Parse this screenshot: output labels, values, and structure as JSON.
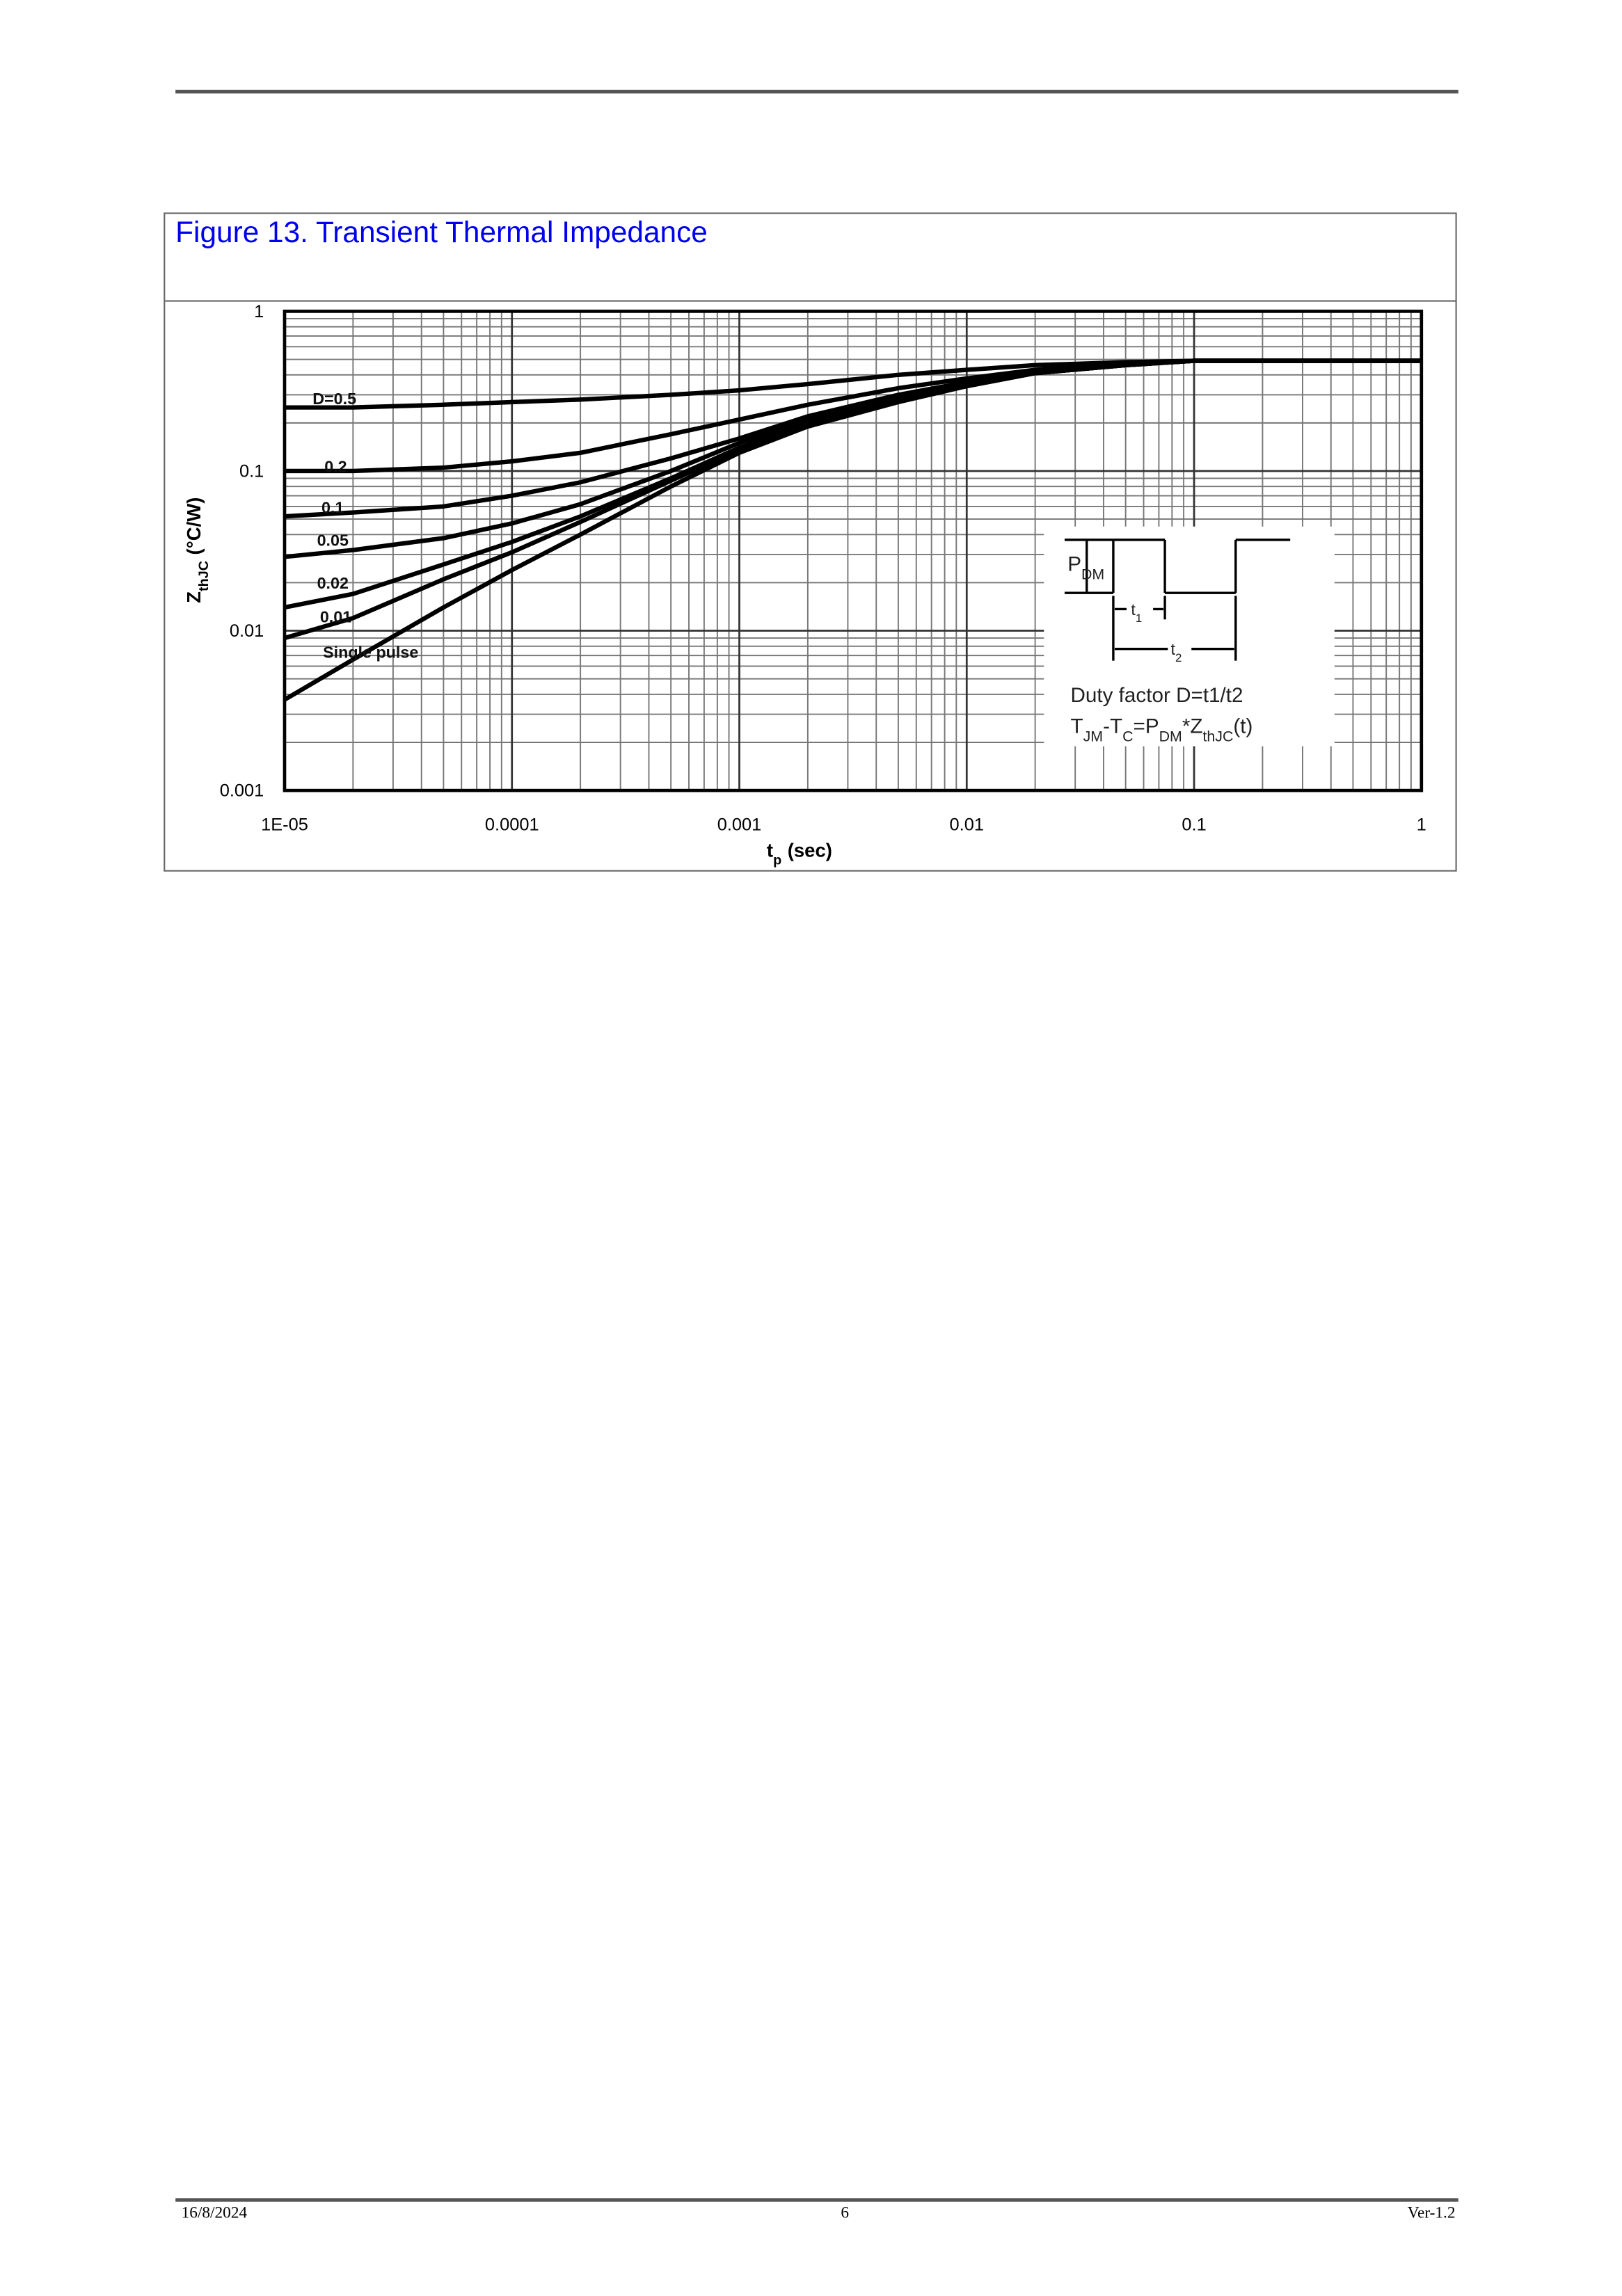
{
  "header": {
    "figure_title": "Figure 13. Transient Thermal Impedance"
  },
  "chart_data": {
    "type": "line",
    "xlabel": [
      "t",
      "p",
      "(sec)"
    ],
    "ylabel": [
      "Z",
      "thJC",
      "(°C/W)"
    ],
    "log_x": true,
    "log_y": true,
    "grid": true,
    "minor_grid": true,
    "xlim": [
      1e-05,
      1
    ],
    "ylim": [
      0.001,
      1
    ],
    "xticks": [
      {
        "value": 1e-05,
        "label": "1E-05"
      },
      0.0001,
      0.001,
      0.01,
      0.1,
      1
    ],
    "yticks": [
      0.001,
      0.01,
      0.1,
      1
    ],
    "x": [
      1e-05,
      2e-05,
      5e-05,
      0.0001,
      0.0002,
      0.0005,
      0.001,
      0.002,
      0.005,
      0.01,
      0.02,
      0.05,
      0.1,
      0.2,
      0.5,
      1
    ],
    "series": [
      {
        "name": "D=0.5",
        "color": "#000000",
        "values": [
          0.25,
          0.25,
          0.26,
          0.27,
          0.28,
          0.3,
          0.32,
          0.35,
          0.4,
          0.43,
          0.46,
          0.48,
          0.49,
          0.49,
          0.49,
          0.49
        ]
      },
      {
        "name": "0.2",
        "color": "#000000",
        "values": [
          0.1,
          0.1,
          0.105,
          0.115,
          0.13,
          0.17,
          0.21,
          0.26,
          0.33,
          0.38,
          0.43,
          0.47,
          0.49,
          0.49,
          0.49,
          0.49
        ]
      },
      {
        "name": "0.1",
        "color": "#000000",
        "values": [
          0.052,
          0.055,
          0.06,
          0.07,
          0.085,
          0.12,
          0.16,
          0.22,
          0.3,
          0.36,
          0.42,
          0.47,
          0.49,
          0.49,
          0.49,
          0.49
        ]
      },
      {
        "name": "0.05",
        "color": "#000000",
        "values": [
          0.029,
          0.032,
          0.038,
          0.047,
          0.062,
          0.1,
          0.15,
          0.21,
          0.29,
          0.35,
          0.41,
          0.46,
          0.49,
          0.49,
          0.49,
          0.49
        ]
      },
      {
        "name": "0.02",
        "color": "#000000",
        "values": [
          0.014,
          0.017,
          0.026,
          0.036,
          0.052,
          0.09,
          0.14,
          0.2,
          0.28,
          0.34,
          0.41,
          0.46,
          0.49,
          0.49,
          0.49,
          0.49
        ]
      },
      {
        "name": "0.01",
        "color": "#000000",
        "values": [
          0.009,
          0.012,
          0.021,
          0.031,
          0.048,
          0.087,
          0.135,
          0.2,
          0.28,
          0.34,
          0.41,
          0.46,
          0.49,
          0.49,
          0.49,
          0.49
        ]
      },
      {
        "name": "Single pulse",
        "color": "#000000",
        "values": [
          0.0037,
          0.0066,
          0.014,
          0.024,
          0.04,
          0.08,
          0.13,
          0.19,
          0.27,
          0.34,
          0.41,
          0.46,
          0.49,
          0.49,
          0.49,
          0.49
        ]
      }
    ]
  },
  "inset": {
    "pdm": [
      "P",
      "DM"
    ],
    "t1": [
      "t",
      "1"
    ],
    "t2": [
      "t",
      "2"
    ],
    "duty": "Duty factor D=t1/t2",
    "formula": [
      "T",
      "JM",
      "-T",
      "C",
      "=P",
      "DM",
      "*Z",
      "thJC",
      "(t)"
    ]
  },
  "footer": {
    "date": "16/8/2024",
    "page": "6",
    "version": "Ver-1.2"
  }
}
